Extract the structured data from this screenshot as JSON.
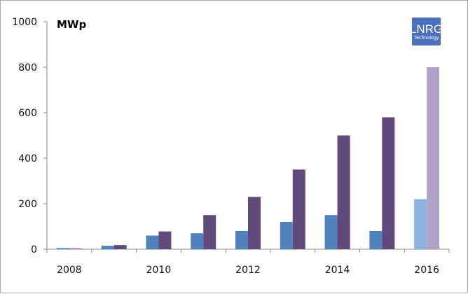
{
  "chart_data": {
    "type": "bar",
    "title": "",
    "xlabel": "",
    "ylabel": "MWp",
    "ylim": [
      0,
      1000
    ],
    "yticks": [
      "0",
      "200",
      "400",
      "600",
      "800",
      "1000"
    ],
    "categories": [
      "2008",
      "2009",
      "2010",
      "2011",
      "2012",
      "2013",
      "2014",
      "2015",
      "2016"
    ],
    "x_tick_labels": [
      "2008",
      "",
      "2010",
      "",
      "2012",
      "",
      "2014",
      "",
      "2016"
    ],
    "series": [
      {
        "color": "#4f81bd",
        "highlight_color": "#8db3e2",
        "values": [
          5,
          15,
          60,
          70,
          80,
          120,
          150,
          80,
          220
        ]
      },
      {
        "color": "#604a7b",
        "highlight_color": "#b3a2c7",
        "values": [
          3,
          18,
          78,
          150,
          230,
          350,
          500,
          580,
          800
        ]
      }
    ],
    "highlighted_category": "2016",
    "grid": false,
    "legend": "none"
  },
  "logo": {
    "main": "LNRG",
    "sub": "Technology",
    "color": "#4a6fbf"
  }
}
